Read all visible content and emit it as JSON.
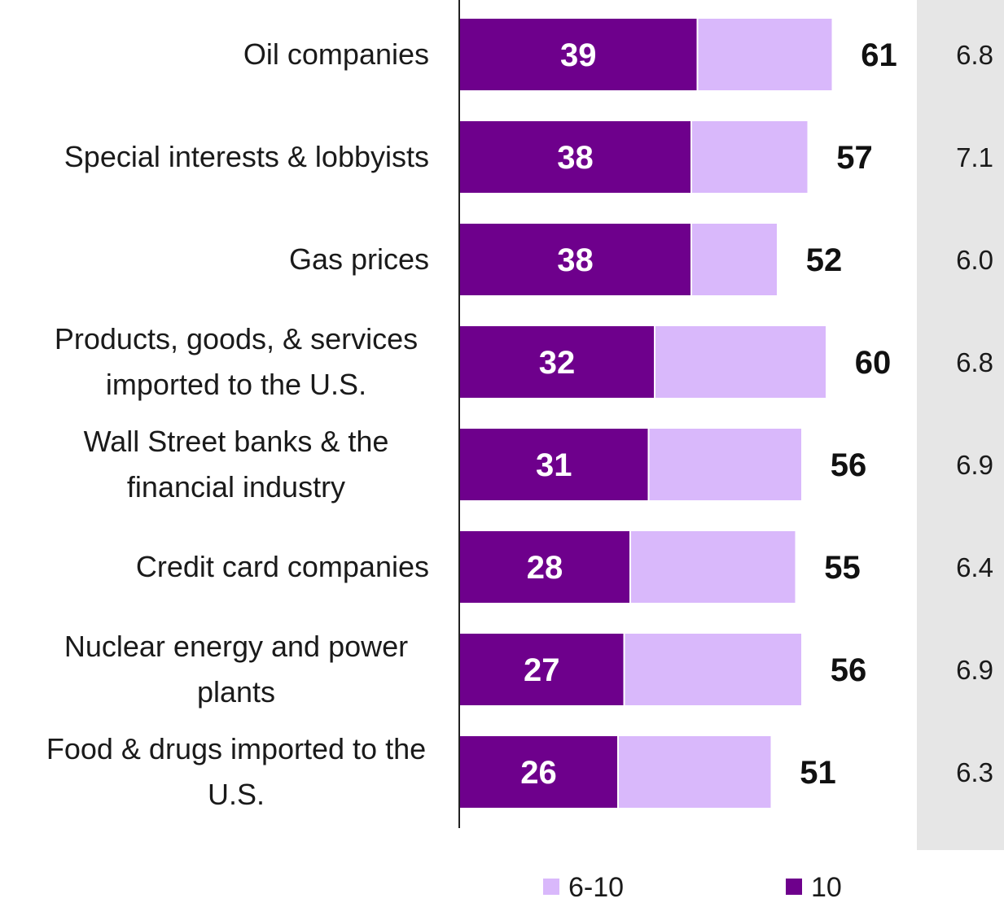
{
  "colors": {
    "dark": "#6e008c",
    "light": "#d9b8fb",
    "panel": "#e6e6e6",
    "axis": "#222222"
  },
  "chart_data": {
    "type": "bar",
    "orientation": "horizontal",
    "stacked": true,
    "categories": [
      "Oil companies",
      "Special interests & lobbyists",
      "Gas prices",
      "Products, goods, & services imported to the U.S.",
      "Wall Street banks & the financial industry",
      "Credit card companies",
      "Nuclear energy and power plants",
      "Food & drugs imported to the U.S."
    ],
    "category_lines": [
      [
        "Oil companies"
      ],
      [
        "Special interests & lobbyists"
      ],
      [
        "Gas prices"
      ],
      [
        "Products, goods, & services",
        "imported to the U.S."
      ],
      [
        "Wall Street banks & the",
        "financial industry"
      ],
      [
        "Credit card companies"
      ],
      [
        "Nuclear energy and power",
        "plants"
      ],
      [
        "Food & drugs imported to the",
        "U.S."
      ]
    ],
    "series": [
      {
        "name": "10",
        "values": [
          39,
          38,
          38,
          32,
          31,
          28,
          27,
          26
        ]
      },
      {
        "name": "6-10",
        "values": [
          61,
          57,
          52,
          60,
          56,
          55,
          56,
          51
        ]
      }
    ],
    "means": [
      "6.8",
      "7.1",
      "6.0",
      "6.8",
      "6.9",
      "6.4",
      "6.9",
      "6.3"
    ],
    "legend": [
      "6-10",
      "10"
    ],
    "legend_position": "bottom",
    "xlim": [
      0,
      100
    ],
    "grid": false
  }
}
